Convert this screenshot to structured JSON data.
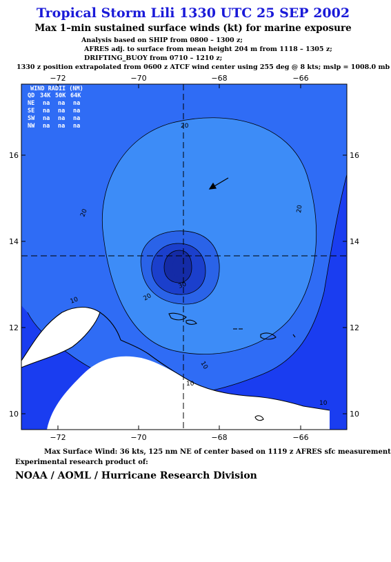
{
  "header": {
    "title": "Tropical Storm Lili 1330 UTC 25 SEP 2002",
    "subtitle": "Max 1–min sustained surface winds (kt) for marine exposure",
    "notes": [
      "Analysis based on  SHIP from 0800 – 1300 z;",
      "AFRES adj. to surface from mean height 204 m from 1118 – 1305 z;",
      "DRIFTING_BUOY from 0710 – 1210 z;",
      "1330 z position extrapolated from 0600 z ATCF wind center using 255 deg @ 8 kts; mslp = 1008.0 mb"
    ]
  },
  "map": {
    "lon_ticks": [
      "−72",
      "−70",
      "−68",
      "−66"
    ],
    "lat_ticks": [
      "16",
      "14",
      "12",
      "10"
    ],
    "contour_labels": [
      "20",
      "20",
      "20",
      "20",
      "30",
      "10",
      "10",
      "10",
      "10"
    ],
    "colors": {
      "level_0_10": "#1a3df0",
      "level_10_20": "#2f6cf5",
      "level_20_25": "#3d8cf7",
      "level_25_30": "#2a63e8",
      "level_30_35": "#1b3fcc",
      "level_35_plus": "#142ba6",
      "land": "#ffffff",
      "coastline": "#000000",
      "center_cross": "#000000"
    }
  },
  "wind_radii": {
    "title": "WIND RADII (NM)",
    "headers": [
      "QD",
      "34K",
      "50K",
      "64K"
    ],
    "rows": [
      [
        "NE",
        "na",
        "na",
        "na"
      ],
      [
        "SE",
        "na",
        "na",
        "na"
      ],
      [
        "SW",
        "na",
        "na",
        "na"
      ],
      [
        "NW",
        "na",
        "na",
        "na"
      ]
    ]
  },
  "footer": {
    "max_wind": "Max Surface Wind: 36 kts, 125 nm NE of center based on 1119 z AFRES sfc measurement",
    "experimental": "Experimental research product of:",
    "org": "NOAA / AOML / Hurricane Research Division"
  }
}
